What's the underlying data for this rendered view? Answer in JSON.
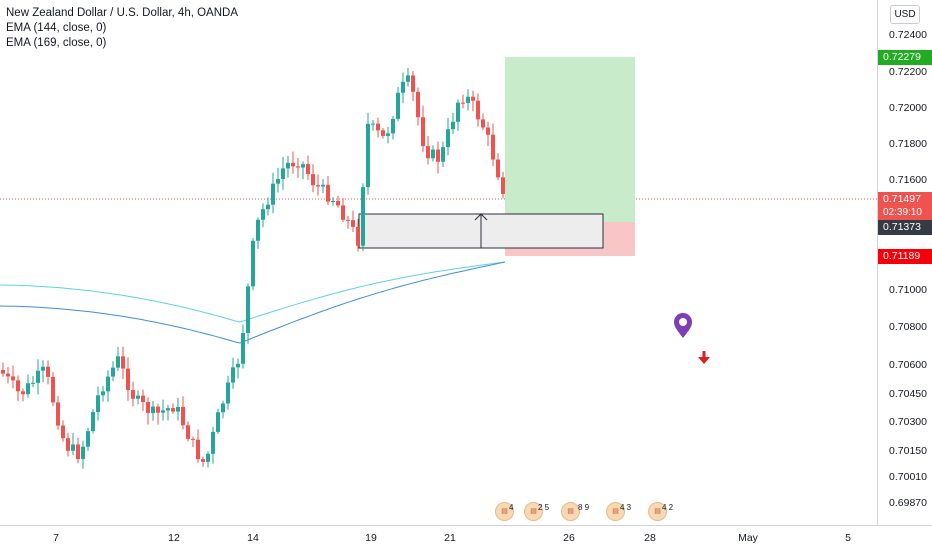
{
  "legend": {
    "title": "New Zealand Dollar / U.S. Dollar, 4h, OANDA",
    "ema1": "EMA (144, close, 0)",
    "ema2": "EMA (169, close, 0)"
  },
  "currency_button": "USD",
  "price_axis": {
    "ticks": [
      "0.72400",
      "0.72200",
      "0.72000",
      "0.71800",
      "0.71600",
      "0.71000",
      "0.70800",
      "0.70600",
      "0.70450",
      "0.70300",
      "0.70150",
      "0.70010",
      "0.69870"
    ]
  },
  "price_tags": {
    "target": {
      "label": "0.72279",
      "color": "#22ab23"
    },
    "current": {
      "label": "0.71497",
      "countdown": "02:39:10",
      "color": "#ef5350"
    },
    "entry": {
      "label": "0.71373",
      "color": "#363a45"
    },
    "stop": {
      "label": "0.71189",
      "color": "#f7000a"
    }
  },
  "time_axis": {
    "labels": [
      "7",
      "12",
      "14",
      "19",
      "21",
      "26",
      "28",
      "May",
      "5"
    ]
  },
  "events": [
    {
      "icon": "us-flag-event-icon",
      "count": "4"
    },
    {
      "icon": "us-flag-event-icon",
      "count": "2 5"
    },
    {
      "icon": "us-flag-event-icon",
      "count": "8 9"
    },
    {
      "icon": "us-flag-event-icon",
      "count": "4 3"
    },
    {
      "icon": "us-flag-event-icon",
      "count": "4 2"
    }
  ],
  "colors": {
    "up": "#26a69a",
    "down": "#ef5350",
    "ema_fast": "#5fd2e6",
    "ema_slow": "#3d8fd6",
    "profit_zone": "#c8ebc9",
    "loss_zone": "#f8c6c6",
    "marker": "#7e3fb6",
    "arrow_down": "#e01c1c"
  }
}
